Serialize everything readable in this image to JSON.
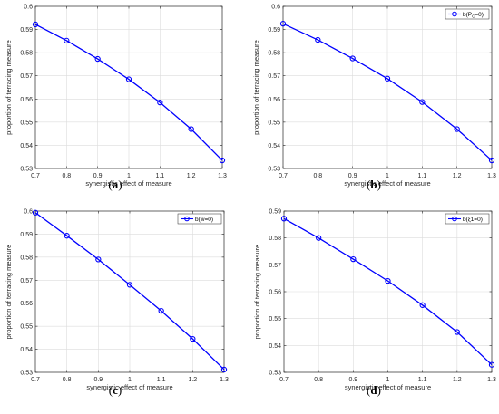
{
  "chart_data": [
    {
      "type": "line",
      "caption": "a",
      "xlabel": "synergistic effect of measure",
      "ylabel": "proportion of terracing measure",
      "xlim": [
        0.7,
        1.3
      ],
      "ylim": [
        0.53,
        0.6
      ],
      "xticks": [
        "0.7",
        "0.8",
        "0.9",
        "1",
        "1.1",
        "1.2",
        "1.3"
      ],
      "yticks": [
        "0.53",
        "0.54",
        "0.55",
        "0.56",
        "0.57",
        "0.58",
        "0.59",
        "0.6"
      ],
      "grid": true,
      "legend": null,
      "x": [
        0.7,
        0.8,
        0.9,
        1.0,
        1.1,
        1.2,
        1.3
      ],
      "series": [
        {
          "values": [
            0.5922,
            0.5852,
            0.5773,
            0.5685,
            0.5585,
            0.547,
            0.5335
          ],
          "color": "#0000ff"
        }
      ]
    },
    {
      "type": "line",
      "caption": "b",
      "xlabel": "synergistic effect of measure",
      "ylabel": "proportion of terracing measure",
      "xlim": [
        0.7,
        1.3
      ],
      "ylim": [
        0.53,
        0.6
      ],
      "xticks": [
        "0.7",
        "0.8",
        "0.9",
        "1",
        "1.1",
        "1.2",
        "1.3"
      ],
      "yticks": [
        "0.53",
        "0.54",
        "0.55",
        "0.56",
        "0.57",
        "0.58",
        "0.59",
        "0.6"
      ],
      "grid": true,
      "legend": "top-right",
      "legend_text": "b(P",
      "legend_sub": "C",
      "legend_tail": "=0)",
      "x": [
        0.7,
        0.8,
        0.9,
        1.0,
        1.1,
        1.2,
        1.3
      ],
      "series": [
        {
          "name": "b(PC=0)",
          "values": [
            0.5925,
            0.5855,
            0.5775,
            0.5688,
            0.5587,
            0.547,
            0.5335
          ],
          "color": "#0000ff"
        }
      ]
    },
    {
      "type": "line",
      "caption": "c",
      "xlabel": "synergistic effect of measure",
      "ylabel": "proportion of terracing measure",
      "xlim": [
        0.7,
        1.3
      ],
      "ylim": [
        0.53,
        0.6
      ],
      "xticks": [
        "0.7",
        "0.8",
        "0.9",
        "1",
        "1.1",
        "1.2",
        "1.3"
      ],
      "yticks": [
        "0.53",
        "0.54",
        "0.55",
        "0.56",
        "0.57",
        "0.58",
        "0.59",
        "0.6"
      ],
      "grid": true,
      "legend": "top-right",
      "legend_text": "b(w=0)",
      "legend_sub": "",
      "legend_tail": "",
      "x": [
        0.7,
        0.8,
        0.9,
        1.0,
        1.1,
        1.2,
        1.3
      ],
      "series": [
        {
          "name": "b(w=0)",
          "values": [
            0.5993,
            0.5893,
            0.579,
            0.568,
            0.5567,
            0.5445,
            0.5312
          ],
          "color": "#0000ff"
        }
      ]
    },
    {
      "type": "line",
      "caption": "d",
      "xlabel": "synergistic effect of measure",
      "ylabel": "proportion of terracing measure",
      "xlim": [
        0.7,
        1.3
      ],
      "ylim": [
        0.53,
        0.59
      ],
      "xticks": [
        "0.7",
        "0.8",
        "0.9",
        "1",
        "1.1",
        "1.2",
        "1.3"
      ],
      "yticks": [
        "0.53",
        "0.54",
        "0.55",
        "0.56",
        "0.57",
        "0.58",
        "0.59"
      ],
      "grid": true,
      "legend": "top-right",
      "legend_text": "b(ξ1=0)",
      "legend_sub": "",
      "legend_tail": "",
      "x": [
        0.7,
        0.8,
        0.9,
        1.0,
        1.1,
        1.2,
        1.3
      ],
      "series": [
        {
          "name": "b(ξ1=0)",
          "values": [
            0.5872,
            0.58,
            0.5721,
            0.564,
            0.555,
            0.545,
            0.5328
          ],
          "color": "#0000ff"
        }
      ]
    }
  ]
}
